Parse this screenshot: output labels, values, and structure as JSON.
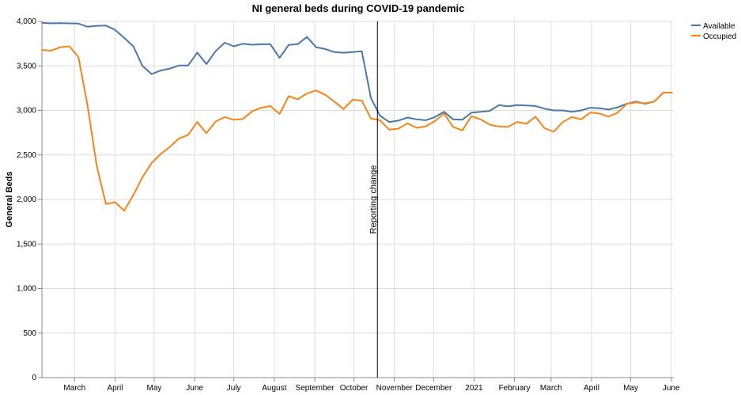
{
  "chart_data": {
    "type": "line",
    "title": "NI general beds during COVID-19 pandemic",
    "ylabel": "General Beds",
    "xlabel": "",
    "ylim": [
      0,
      4000
    ],
    "y_ticks": [
      0,
      500,
      1000,
      1500,
      2000,
      2500,
      3000,
      3500,
      4000
    ],
    "y_tick_labels": [
      "0",
      "500",
      "1,000",
      "1,500",
      "2,000",
      "2,500",
      "3,000",
      "3,500",
      "4,000"
    ],
    "x_domain": [
      "2020-02-05",
      "2021-06-03"
    ],
    "x_ticks": [
      {
        "date": "2020-03-01",
        "label": "March"
      },
      {
        "date": "2020-04-01",
        "label": "April"
      },
      {
        "date": "2020-05-01",
        "label": "May"
      },
      {
        "date": "2020-06-01",
        "label": "June"
      },
      {
        "date": "2020-07-01",
        "label": "July"
      },
      {
        "date": "2020-08-01",
        "label": "August"
      },
      {
        "date": "2020-09-01",
        "label": "September"
      },
      {
        "date": "2020-10-01",
        "label": "October"
      },
      {
        "date": "2020-11-01",
        "label": "November"
      },
      {
        "date": "2020-12-01",
        "label": "December"
      },
      {
        "date": "2021-01-01",
        "label": "2021"
      },
      {
        "date": "2021-02-01",
        "label": "February"
      },
      {
        "date": "2021-03-01",
        "label": "March"
      },
      {
        "date": "2021-04-01",
        "label": "April"
      },
      {
        "date": "2021-05-01",
        "label": "May"
      },
      {
        "date": "2021-06-01",
        "label": "June"
      }
    ],
    "grid": true,
    "legend": "top-right",
    "annotation": {
      "date": "2020-10-19",
      "label": "Reporting change"
    },
    "series": [
      {
        "name": "Available",
        "color": "#4c78a8",
        "points": [
          [
            "2020-02-05",
            3985
          ],
          [
            "2020-02-12",
            3978
          ],
          [
            "2020-02-19",
            3980
          ],
          [
            "2020-02-26",
            3978
          ],
          [
            "2020-03-04",
            3975
          ],
          [
            "2020-03-11",
            3940
          ],
          [
            "2020-03-18",
            3950
          ],
          [
            "2020-03-25",
            3953
          ],
          [
            "2020-04-01",
            3905
          ],
          [
            "2020-04-08",
            3815
          ],
          [
            "2020-04-15",
            3720
          ],
          [
            "2020-04-22",
            3500
          ],
          [
            "2020-04-29",
            3408
          ],
          [
            "2020-05-06",
            3448
          ],
          [
            "2020-05-13",
            3470
          ],
          [
            "2020-05-20",
            3505
          ],
          [
            "2020-05-27",
            3505
          ],
          [
            "2020-06-03",
            3650
          ],
          [
            "2020-06-10",
            3520
          ],
          [
            "2020-06-17",
            3665
          ],
          [
            "2020-06-24",
            3760
          ],
          [
            "2020-07-01",
            3720
          ],
          [
            "2020-07-08",
            3748
          ],
          [
            "2020-07-15",
            3738
          ],
          [
            "2020-07-22",
            3743
          ],
          [
            "2020-07-29",
            3743
          ],
          [
            "2020-08-05",
            3590
          ],
          [
            "2020-08-12",
            3735
          ],
          [
            "2020-08-19",
            3745
          ],
          [
            "2020-08-26",
            3825
          ],
          [
            "2020-09-02",
            3710
          ],
          [
            "2020-09-09",
            3690
          ],
          [
            "2020-09-16",
            3655
          ],
          [
            "2020-09-23",
            3648
          ],
          [
            "2020-09-30",
            3655
          ],
          [
            "2020-10-07",
            3665
          ],
          [
            "2020-10-14",
            3140
          ],
          [
            "2020-10-21",
            2940
          ],
          [
            "2020-10-28",
            2870
          ],
          [
            "2020-11-04",
            2885
          ],
          [
            "2020-11-11",
            2920
          ],
          [
            "2020-11-18",
            2900
          ],
          [
            "2020-11-25",
            2890
          ],
          [
            "2020-12-02",
            2925
          ],
          [
            "2020-12-09",
            2985
          ],
          [
            "2020-12-16",
            2900
          ],
          [
            "2020-12-23",
            2895
          ],
          [
            "2020-12-30",
            2975
          ],
          [
            "2021-01-06",
            2985
          ],
          [
            "2021-01-13",
            2995
          ],
          [
            "2021-01-20",
            3060
          ],
          [
            "2021-01-27",
            3045
          ],
          [
            "2021-02-03",
            3060
          ],
          [
            "2021-02-10",
            3055
          ],
          [
            "2021-02-17",
            3050
          ],
          [
            "2021-02-24",
            3020
          ],
          [
            "2021-03-03",
            3000
          ],
          [
            "2021-03-10",
            3000
          ],
          [
            "2021-03-17",
            2985
          ],
          [
            "2021-03-24",
            3000
          ],
          [
            "2021-03-31",
            3030
          ],
          [
            "2021-04-07",
            3025
          ],
          [
            "2021-04-14",
            3010
          ],
          [
            "2021-04-21",
            3035
          ],
          [
            "2021-04-28",
            3075
          ],
          [
            "2021-05-05",
            3100
          ],
          [
            "2021-05-12",
            3075
          ],
          [
            "2021-05-19",
            3100
          ],
          [
            "2021-05-26",
            3200
          ],
          [
            "2021-06-02",
            3200
          ]
        ]
      },
      {
        "name": "Occupied",
        "color": "#f58518",
        "points": [
          [
            "2020-02-05",
            3680
          ],
          [
            "2020-02-12",
            3670
          ],
          [
            "2020-02-19",
            3710
          ],
          [
            "2020-02-26",
            3720
          ],
          [
            "2020-03-04",
            3600
          ],
          [
            "2020-03-11",
            3050
          ],
          [
            "2020-03-18",
            2380
          ],
          [
            "2020-03-25",
            1950
          ],
          [
            "2020-04-01",
            1970
          ],
          [
            "2020-04-08",
            1875
          ],
          [
            "2020-04-15",
            2050
          ],
          [
            "2020-04-22",
            2250
          ],
          [
            "2020-04-29",
            2410
          ],
          [
            "2020-05-06",
            2510
          ],
          [
            "2020-05-13",
            2590
          ],
          [
            "2020-05-20",
            2685
          ],
          [
            "2020-05-27",
            2725
          ],
          [
            "2020-06-03",
            2870
          ],
          [
            "2020-06-10",
            2745
          ],
          [
            "2020-06-17",
            2875
          ],
          [
            "2020-06-24",
            2925
          ],
          [
            "2020-07-01",
            2895
          ],
          [
            "2020-07-08",
            2905
          ],
          [
            "2020-07-15",
            2990
          ],
          [
            "2020-07-22",
            3030
          ],
          [
            "2020-07-29",
            3050
          ],
          [
            "2020-08-05",
            2960
          ],
          [
            "2020-08-12",
            3160
          ],
          [
            "2020-08-19",
            3125
          ],
          [
            "2020-08-26",
            3190
          ],
          [
            "2020-09-02",
            3225
          ],
          [
            "2020-09-09",
            3175
          ],
          [
            "2020-09-16",
            3100
          ],
          [
            "2020-09-23",
            3015
          ],
          [
            "2020-09-30",
            3120
          ],
          [
            "2020-10-07",
            3110
          ],
          [
            "2020-10-14",
            2910
          ],
          [
            "2020-10-21",
            2890
          ],
          [
            "2020-10-28",
            2785
          ],
          [
            "2020-11-04",
            2795
          ],
          [
            "2020-11-11",
            2855
          ],
          [
            "2020-11-18",
            2805
          ],
          [
            "2020-11-25",
            2820
          ],
          [
            "2020-12-02",
            2880
          ],
          [
            "2020-12-09",
            2965
          ],
          [
            "2020-12-16",
            2815
          ],
          [
            "2020-12-23",
            2775
          ],
          [
            "2020-12-30",
            2935
          ],
          [
            "2021-01-06",
            2900
          ],
          [
            "2021-01-13",
            2840
          ],
          [
            "2021-01-20",
            2820
          ],
          [
            "2021-01-27",
            2815
          ],
          [
            "2021-02-03",
            2870
          ],
          [
            "2021-02-10",
            2850
          ],
          [
            "2021-02-17",
            2930
          ],
          [
            "2021-02-24",
            2800
          ],
          [
            "2021-03-03",
            2760
          ],
          [
            "2021-03-10",
            2870
          ],
          [
            "2021-03-17",
            2925
          ],
          [
            "2021-03-24",
            2900
          ],
          [
            "2021-03-31",
            2975
          ],
          [
            "2021-04-07",
            2965
          ],
          [
            "2021-04-14",
            2930
          ],
          [
            "2021-04-21",
            2975
          ],
          [
            "2021-04-28",
            3075
          ],
          [
            "2021-05-05",
            3090
          ],
          [
            "2021-05-12",
            3080
          ],
          [
            "2021-05-19",
            3100
          ],
          [
            "2021-05-26",
            3200
          ],
          [
            "2021-06-02",
            3200
          ]
        ]
      }
    ]
  }
}
